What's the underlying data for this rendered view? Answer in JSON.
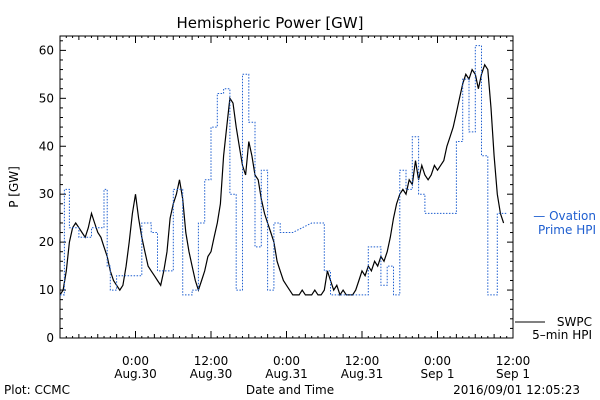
{
  "colors": {
    "observed": "#000000",
    "ovation": "#1f5fd0",
    "axes": "#000000"
  },
  "footer": {
    "left": "Plot: CCMC",
    "right": "2016/09/01 12:05:23"
  },
  "chart_data": {
    "type": "line",
    "title": "Hemispheric Power [GW]",
    "xlabel": "Date and Time",
    "ylabel": "P [GW]",
    "x_unit": "hours since 2016-08-29 12:00 UT",
    "xlim": [
      0,
      72
    ],
    "ylim": [
      0,
      63
    ],
    "yticks": [
      0,
      10,
      20,
      30,
      40,
      50,
      60
    ],
    "xticks": [
      {
        "x": 12,
        "line1": "0:00",
        "line2": "Aug.30"
      },
      {
        "x": 24,
        "line1": "12:00",
        "line2": "Aug.30"
      },
      {
        "x": 36,
        "line1": "0:00",
        "line2": "Aug.31"
      },
      {
        "x": 48,
        "line1": "12:00",
        "line2": "Aug.31"
      },
      {
        "x": 60,
        "line1": "0:00",
        "line2": "Sep 1"
      },
      {
        "x": 72,
        "line1": "12:00",
        "line2": "Sep 1"
      }
    ],
    "legend": [
      {
        "text": "— Ovation",
        "line2": "Prime HPI",
        "series": "Ovation Prime HPI",
        "position": "right"
      },
      {
        "text": "SWPC",
        "line2": "5–min HPI",
        "series": "SWPC 5-min HPI",
        "position": "right"
      }
    ],
    "series": [
      {
        "name": "SWPC 5-min HPI",
        "style": "solid",
        "points": [
          [
            0,
            9
          ],
          [
            0.5,
            10
          ],
          [
            1,
            14
          ],
          [
            1.5,
            20
          ],
          [
            2,
            23
          ],
          [
            2.5,
            24
          ],
          [
            3,
            23
          ],
          [
            3.5,
            22
          ],
          [
            4,
            21
          ],
          [
            4.5,
            23
          ],
          [
            5,
            26
          ],
          [
            5.5,
            24
          ],
          [
            6,
            22
          ],
          [
            6.5,
            21
          ],
          [
            7,
            19
          ],
          [
            7.5,
            17
          ],
          [
            8,
            14
          ],
          [
            8.5,
            12
          ],
          [
            9,
            11
          ],
          [
            9.5,
            10
          ],
          [
            10,
            11
          ],
          [
            10.5,
            15
          ],
          [
            11,
            20
          ],
          [
            11.5,
            26
          ],
          [
            12,
            30
          ],
          [
            12.5,
            25
          ],
          [
            13,
            21
          ],
          [
            13.5,
            18
          ],
          [
            14,
            15
          ],
          [
            14.5,
            14
          ],
          [
            15,
            13
          ],
          [
            15.5,
            12
          ],
          [
            16,
            11
          ],
          [
            16.5,
            14
          ],
          [
            17,
            18
          ],
          [
            17.5,
            25
          ],
          [
            18,
            28
          ],
          [
            18.5,
            30
          ],
          [
            19,
            33
          ],
          [
            19.5,
            29
          ],
          [
            20,
            22
          ],
          [
            20.5,
            18
          ],
          [
            21,
            15
          ],
          [
            21.5,
            12
          ],
          [
            22,
            10
          ],
          [
            22.5,
            12
          ],
          [
            23,
            14
          ],
          [
            23.5,
            17
          ],
          [
            24,
            18
          ],
          [
            24.5,
            21
          ],
          [
            25,
            24
          ],
          [
            25.5,
            28
          ],
          [
            26,
            38
          ],
          [
            26.5,
            44
          ],
          [
            27,
            50
          ],
          [
            27.5,
            49
          ],
          [
            28,
            44
          ],
          [
            28.5,
            40
          ],
          [
            29,
            36
          ],
          [
            29.5,
            34
          ],
          [
            30,
            41
          ],
          [
            30.5,
            38
          ],
          [
            31,
            34
          ],
          [
            31.5,
            33
          ],
          [
            32,
            29
          ],
          [
            32.5,
            26
          ],
          [
            33,
            24
          ],
          [
            33.5,
            22
          ],
          [
            34,
            20
          ],
          [
            34.5,
            16
          ],
          [
            35,
            14
          ],
          [
            35.5,
            12
          ],
          [
            36,
            11
          ],
          [
            36.5,
            10
          ],
          [
            37,
            9
          ],
          [
            37.5,
            9
          ],
          [
            38,
            9
          ],
          [
            38.5,
            10
          ],
          [
            39,
            9
          ],
          [
            39.5,
            9
          ],
          [
            40,
            9
          ],
          [
            40.5,
            10
          ],
          [
            41,
            9
          ],
          [
            41.5,
            9
          ],
          [
            42,
            10
          ],
          [
            42.5,
            14
          ],
          [
            43,
            12
          ],
          [
            43.5,
            10
          ],
          [
            44,
            11
          ],
          [
            44.5,
            9
          ],
          [
            45,
            10
          ],
          [
            45.5,
            9
          ],
          [
            46,
            9
          ],
          [
            46.5,
            9
          ],
          [
            47,
            10
          ],
          [
            47.5,
            12
          ],
          [
            48,
            14
          ],
          [
            48.5,
            13
          ],
          [
            49,
            15
          ],
          [
            49.5,
            14
          ],
          [
            50,
            16
          ],
          [
            50.5,
            15
          ],
          [
            51,
            17
          ],
          [
            51.5,
            16
          ],
          [
            52,
            18
          ],
          [
            52.5,
            21
          ],
          [
            53,
            25
          ],
          [
            53.5,
            28
          ],
          [
            54,
            30
          ],
          [
            54.5,
            31
          ],
          [
            55,
            30
          ],
          [
            55.5,
            33
          ],
          [
            56,
            32
          ],
          [
            56.5,
            37
          ],
          [
            57,
            33
          ],
          [
            57.5,
            36
          ],
          [
            58,
            34
          ],
          [
            58.5,
            33
          ],
          [
            59,
            34
          ],
          [
            59.5,
            36
          ],
          [
            60,
            35
          ],
          [
            60.5,
            36
          ],
          [
            61,
            37
          ],
          [
            61.5,
            40
          ],
          [
            62,
            42
          ],
          [
            62.5,
            44
          ],
          [
            63,
            47
          ],
          [
            63.5,
            50
          ],
          [
            64,
            53
          ],
          [
            64.5,
            55
          ],
          [
            65,
            54
          ],
          [
            65.5,
            56
          ],
          [
            66,
            55
          ],
          [
            66.5,
            52
          ],
          [
            67,
            55
          ],
          [
            67.5,
            57
          ],
          [
            68,
            56
          ],
          [
            68.5,
            48
          ],
          [
            69,
            38
          ],
          [
            69.5,
            30
          ],
          [
            70,
            26
          ],
          [
            70.5,
            24
          ]
        ]
      },
      {
        "name": "Ovation Prime HPI",
        "style": "dotted",
        "points": [
          [
            0,
            9
          ],
          [
            0.7,
            9
          ],
          [
            0.7,
            31
          ],
          [
            1.5,
            31
          ],
          [
            1.5,
            23
          ],
          [
            3,
            23
          ],
          [
            3,
            21
          ],
          [
            5,
            21
          ],
          [
            5,
            23
          ],
          [
            7,
            23
          ],
          [
            7,
            31
          ],
          [
            7.5,
            31
          ],
          [
            7.5,
            15
          ],
          [
            8,
            15
          ],
          [
            8,
            10
          ],
          [
            9,
            10
          ],
          [
            9,
            13
          ],
          [
            13,
            13
          ],
          [
            13,
            24
          ],
          [
            14.5,
            24
          ],
          [
            14.5,
            22
          ],
          [
            15.5,
            22
          ],
          [
            15.5,
            14
          ],
          [
            18,
            14
          ],
          [
            18,
            31
          ],
          [
            19.5,
            31
          ],
          [
            19.5,
            9
          ],
          [
            21,
            9
          ],
          [
            21,
            10
          ],
          [
            22,
            10
          ],
          [
            22,
            24
          ],
          [
            23,
            24
          ],
          [
            23,
            33
          ],
          [
            24,
            33
          ],
          [
            24,
            44
          ],
          [
            25,
            44
          ],
          [
            25,
            51
          ],
          [
            26,
            51
          ],
          [
            26,
            52
          ],
          [
            27,
            52
          ],
          [
            27,
            30
          ],
          [
            28,
            30
          ],
          [
            28,
            10
          ],
          [
            29,
            10
          ],
          [
            29,
            55
          ],
          [
            30,
            55
          ],
          [
            30,
            45
          ],
          [
            31,
            45
          ],
          [
            31,
            19
          ],
          [
            32,
            19
          ],
          [
            32,
            35
          ],
          [
            33,
            35
          ],
          [
            33,
            10
          ],
          [
            34,
            10
          ],
          [
            34,
            24
          ],
          [
            35,
            24
          ],
          [
            35,
            22
          ],
          [
            37,
            22
          ],
          [
            37,
            22
          ],
          [
            40,
            24
          ],
          [
            40,
            24
          ],
          [
            42,
            24
          ],
          [
            42,
            14
          ],
          [
            43,
            14
          ],
          [
            43,
            9
          ],
          [
            48,
            9
          ],
          [
            48,
            9
          ],
          [
            49,
            9
          ],
          [
            49,
            19
          ],
          [
            51,
            19
          ],
          [
            51,
            11
          ],
          [
            52,
            11
          ],
          [
            52,
            15
          ],
          [
            53,
            15
          ],
          [
            53,
            9
          ],
          [
            54,
            9
          ],
          [
            54,
            35
          ],
          [
            55,
            35
          ],
          [
            55,
            31
          ],
          [
            56,
            31
          ],
          [
            56,
            42
          ],
          [
            57,
            42
          ],
          [
            57,
            30
          ],
          [
            58,
            30
          ],
          [
            58,
            26
          ],
          [
            61,
            26
          ],
          [
            61,
            26
          ],
          [
            63,
            26
          ],
          [
            63,
            41
          ],
          [
            64,
            41
          ],
          [
            64,
            54
          ],
          [
            65,
            54
          ],
          [
            65,
            43
          ],
          [
            66,
            43
          ],
          [
            66,
            61
          ],
          [
            67,
            61
          ],
          [
            67,
            38
          ],
          [
            68,
            38
          ],
          [
            68,
            9
          ],
          [
            69.5,
            9
          ],
          [
            69.5,
            26
          ],
          [
            71,
            26
          ]
        ]
      }
    ]
  }
}
